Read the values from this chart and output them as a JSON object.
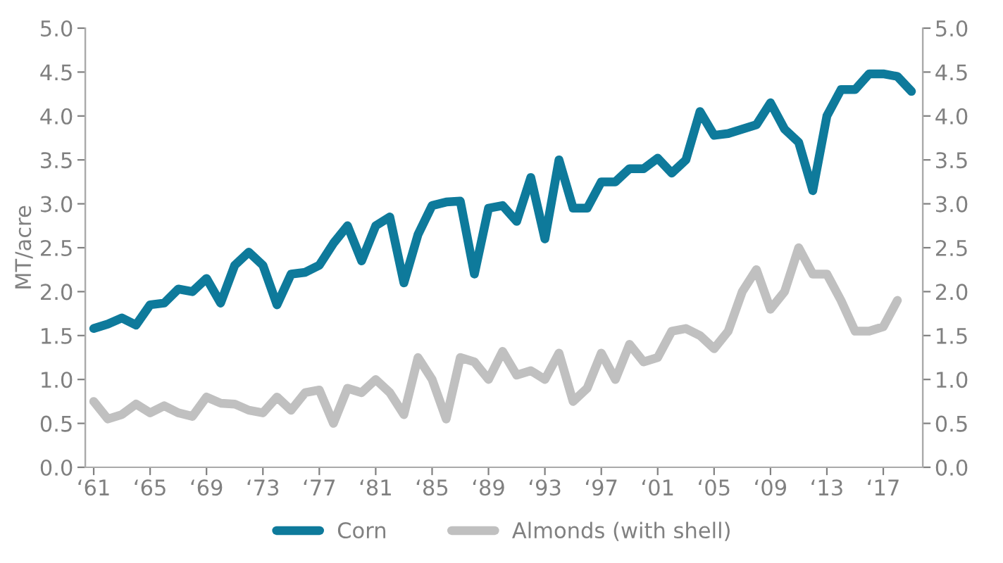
{
  "chart_data": {
    "type": "line",
    "ylabel": "MT/acre",
    "categories": [
      "‘61",
      null,
      null,
      null,
      "‘65",
      null,
      null,
      null,
      "‘69",
      null,
      null,
      null,
      "‘73",
      null,
      null,
      null,
      "‘77",
      null,
      null,
      null,
      "‘81",
      null,
      null,
      null,
      "‘85",
      null,
      null,
      null,
      "‘89",
      null,
      null,
      null,
      "‘93",
      null,
      null,
      null,
      "‘97",
      null,
      null,
      null,
      "‘01",
      null,
      null,
      null,
      "‘05",
      null,
      null,
      null,
      "‘09",
      null,
      null,
      null,
      "‘13",
      null,
      null,
      null,
      "‘17",
      null,
      null
    ],
    "series": [
      {
        "name": "Corn",
        "color": "#0e7a9b",
        "values": [
          1.58,
          1.63,
          1.7,
          1.62,
          1.85,
          1.87,
          2.03,
          2.0,
          2.15,
          1.87,
          2.3,
          2.45,
          2.3,
          1.85,
          2.2,
          2.22,
          2.3,
          2.55,
          2.75,
          2.35,
          2.75,
          2.85,
          2.1,
          2.65,
          2.98,
          3.02,
          3.03,
          2.2,
          2.95,
          2.98,
          2.8,
          3.3,
          2.6,
          3.5,
          2.95,
          2.95,
          3.25,
          3.25,
          3.4,
          3.4,
          3.52,
          3.35,
          3.5,
          4.05,
          3.78,
          3.8,
          3.85,
          3.9,
          4.15,
          3.85,
          3.7,
          3.15,
          4.0,
          4.3,
          4.3,
          4.48,
          4.48,
          4.45,
          4.28
        ]
      },
      {
        "name": "Almonds (with shell)",
        "color": "#c0c0c0",
        "values": [
          0.75,
          0.55,
          0.6,
          0.72,
          0.62,
          0.7,
          0.62,
          0.58,
          0.8,
          0.73,
          0.72,
          0.65,
          0.62,
          0.8,
          0.65,
          0.85,
          0.88,
          0.5,
          0.9,
          0.85,
          1.0,
          0.85,
          0.6,
          1.25,
          1.0,
          0.55,
          1.25,
          1.2,
          1.0,
          1.32,
          1.05,
          1.1,
          1.0,
          1.3,
          0.75,
          0.9,
          1.3,
          1.0,
          1.4,
          1.2,
          1.25,
          1.55,
          1.58,
          1.5,
          1.35,
          1.55,
          2.0,
          2.25,
          1.8,
          2.0,
          2.5,
          2.2,
          2.2,
          1.9,
          1.55,
          1.55,
          1.6,
          1.9,
          null
        ]
      }
    ],
    "ylim": [
      0,
      5
    ],
    "yticks": [
      {
        "value": 0,
        "label": "0.0"
      },
      {
        "value": 0.5,
        "label": "0.5"
      },
      {
        "value": 1,
        "label": "1.0"
      },
      {
        "value": 1.5,
        "label": "1.5"
      },
      {
        "value": 2,
        "label": "2.0"
      },
      {
        "value": 2.5,
        "label": "2.5"
      },
      {
        "value": 3,
        "label": "3.0"
      },
      {
        "value": 3.5,
        "label": "3.5"
      },
      {
        "value": 4,
        "label": "4.0"
      },
      {
        "value": 4.5,
        "label": "4.5"
      },
      {
        "value": 5,
        "label": "5.0"
      }
    ],
    "y2lim": [
      0,
      5
    ],
    "y2ticks": [
      {
        "value": 0,
        "label": "0.0"
      },
      {
        "value": 0.5,
        "label": "0.5"
      },
      {
        "value": 1,
        "label": "1.0"
      },
      {
        "value": 1.5,
        "label": "1.5"
      },
      {
        "value": 2,
        "label": "2.0"
      },
      {
        "value": 2.5,
        "label": "2.5"
      },
      {
        "value": 3,
        "label": "3.0"
      },
      {
        "value": 3.5,
        "label": "3.5"
      },
      {
        "value": 4,
        "label": "4.0"
      },
      {
        "value": 4.5,
        "label": "4.5"
      },
      {
        "value": 5,
        "label": "5.0"
      }
    ],
    "grid": false,
    "legend": "bottom",
    "marker": "none",
    "line_style": "solid"
  }
}
